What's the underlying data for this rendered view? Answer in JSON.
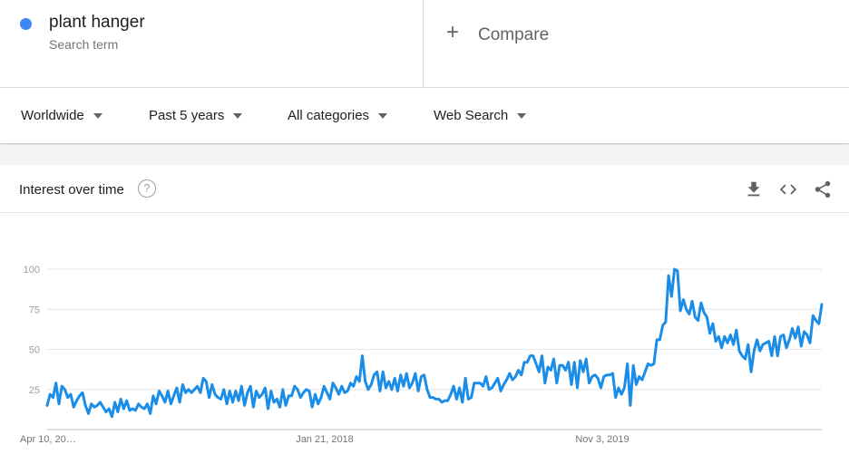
{
  "term": {
    "name": "plant hanger",
    "subtitle": "Search term",
    "color": "#4285f4"
  },
  "compare": {
    "label": "Compare"
  },
  "filters": [
    {
      "label": "Worldwide"
    },
    {
      "label": "Past 5 years"
    },
    {
      "label": "All categories"
    },
    {
      "label": "Web Search"
    }
  ],
  "card": {
    "title": "Interest over time",
    "help": "?",
    "icons": [
      "download-icon",
      "embed-code-icon",
      "share-icon"
    ]
  },
  "chart_data": {
    "type": "line",
    "line_color": "#1a8de9",
    "y_ticks": [
      25,
      50,
      75,
      100
    ],
    "ylim": [
      0,
      100
    ],
    "x_labels": [
      "Apr 10, 20…",
      "Jan 21, 2018",
      "Nov 3, 2019"
    ],
    "series": [
      {
        "values": [
          15,
          22,
          20,
          29,
          16,
          27,
          25,
          20,
          22,
          14,
          18,
          21,
          23,
          15,
          10,
          16,
          14,
          15,
          17,
          14,
          11,
          13,
          8,
          17,
          11,
          19,
          13,
          18,
          12,
          13,
          12,
          16,
          14,
          13,
          16,
          10,
          21,
          16,
          24,
          21,
          17,
          24,
          16,
          21,
          26,
          17,
          28,
          23,
          25,
          23,
          25,
          27,
          23,
          32,
          30,
          20,
          28,
          22,
          20,
          19,
          25,
          16,
          24,
          17,
          24,
          18,
          27,
          15,
          23,
          27,
          14,
          24,
          20,
          22,
          26,
          13,
          24,
          17,
          19,
          14,
          25,
          15,
          21,
          21,
          27,
          25,
          20,
          23,
          25,
          24,
          14,
          22,
          16,
          20,
          27,
          23,
          19,
          29,
          26,
          22,
          27,
          23,
          24,
          29,
          27,
          33,
          30,
          46,
          30,
          25,
          28,
          34,
          36,
          24,
          36,
          26,
          30,
          25,
          32,
          24,
          34,
          27,
          35,
          26,
          29,
          35,
          24,
          33,
          34,
          25,
          20,
          20,
          19,
          19,
          17,
          18,
          18,
          22,
          27,
          19,
          26,
          17,
          32,
          19,
          20,
          29,
          29,
          29,
          27,
          33,
          25,
          26,
          29,
          32,
          24,
          28,
          31,
          35,
          31,
          33,
          37,
          34,
          42,
          42,
          46,
          46,
          41,
          36,
          46,
          29,
          39,
          37,
          44,
          29,
          40,
          40,
          37,
          42,
          28,
          42,
          26,
          43,
          36,
          44,
          29,
          33,
          34,
          32,
          26,
          33,
          34,
          34,
          35,
          20,
          26,
          22,
          26,
          41,
          15,
          40,
          28,
          33,
          31,
          36,
          41,
          40,
          41,
          56,
          56,
          65,
          67,
          96,
          83,
          100,
          99,
          74,
          81,
          75,
          72,
          80,
          70,
          68,
          79,
          73,
          70,
          60,
          66,
          55,
          58,
          51,
          58,
          54,
          59,
          53,
          62,
          49,
          46,
          44,
          53,
          36,
          49,
          56,
          49,
          53,
          54,
          55,
          46,
          58,
          46,
          58,
          59,
          51,
          56,
          63,
          57,
          64,
          52,
          61,
          59,
          54,
          71,
          68,
          66,
          78
        ]
      }
    ]
  }
}
